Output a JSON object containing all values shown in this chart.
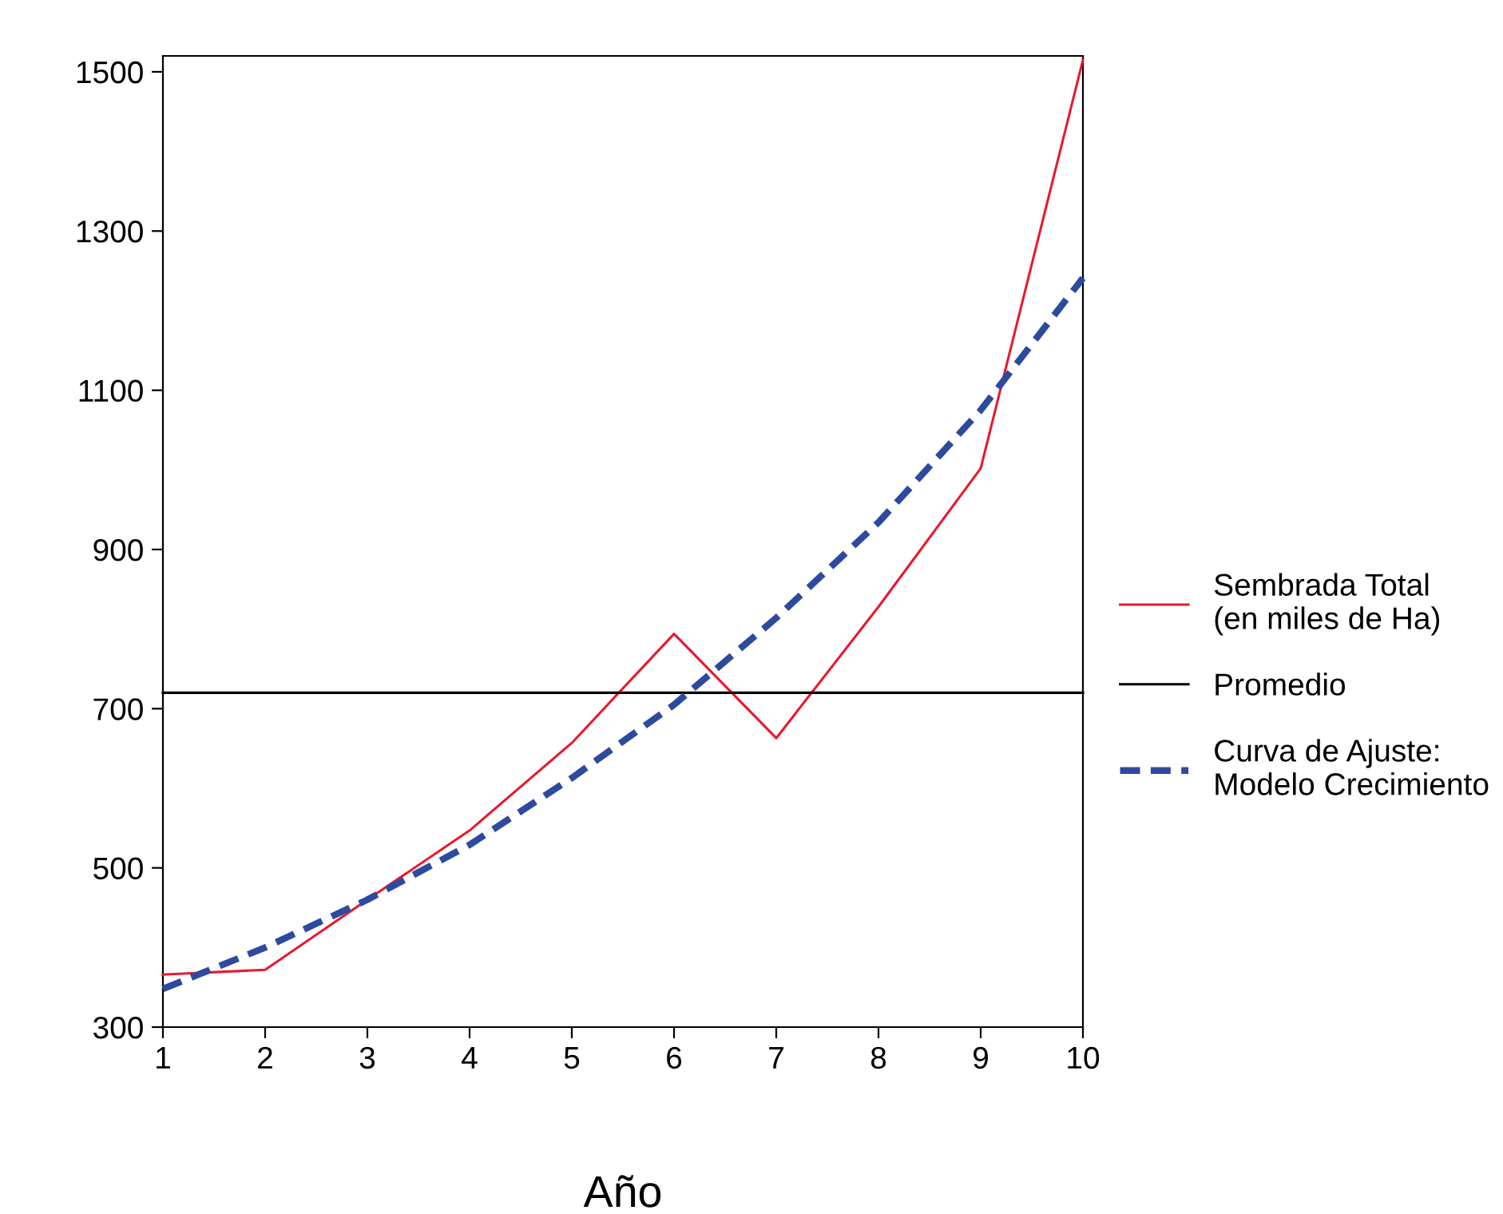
{
  "chart_data": {
    "type": "line",
    "xlabel": "Año",
    "x": [
      1,
      2,
      3,
      4,
      5,
      6,
      7,
      8,
      9,
      10
    ],
    "series": [
      {
        "name": "Sembrada Total\n(en miles de Ha)",
        "color": "#e8192c",
        "line_style": "solid",
        "values": [
          366,
          372,
          460,
          547,
          657,
          794,
          663,
          828,
          1002,
          1515
        ]
      },
      {
        "name": "Promedio",
        "color": "#000000",
        "line_style": "solid",
        "values": [
          720,
          720,
          720,
          720,
          720,
          720,
          720,
          720,
          720,
          720
        ]
      },
      {
        "name": "Curva de Ajuste:\nModelo Crecimiento",
        "color": "#2e4a9e",
        "line_style": "dashed",
        "values": [
          348,
          400,
          460,
          529,
          613,
          705,
          814,
          934,
          1075,
          1241
        ]
      }
    ],
    "xlim": [
      1,
      10
    ],
    "xticks": [
      1,
      2,
      3,
      4,
      5,
      6,
      7,
      8,
      9,
      10
    ],
    "ylim": [
      300,
      1520
    ],
    "yticks": [
      300,
      500,
      700,
      900,
      1100,
      1300,
      1500
    ],
    "grid": false,
    "legend": "right",
    "marker": "none"
  }
}
